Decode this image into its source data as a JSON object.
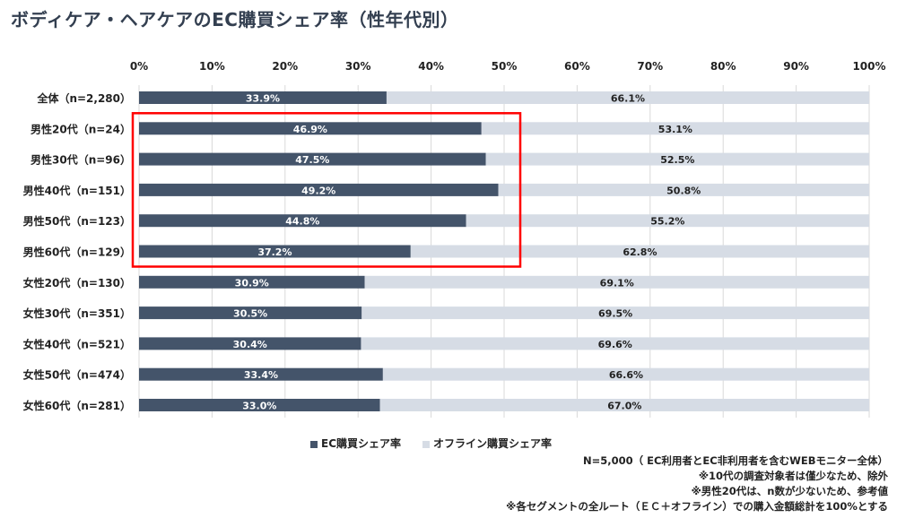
{
  "chart_data": {
    "type": "bar",
    "stacked": true,
    "orientation": "horizontal",
    "title": "ボディケア・ヘアケアのEC購買シェア率（性年代別）",
    "categories": [
      "全体（n=2,280）",
      "男性20代（n=24）",
      "男性30代（n=96）",
      "男性40代（n=151）",
      "男性50代（n=123）",
      "男性60代（n=129）",
      "女性20代（n=130）",
      "女性30代（n=351）",
      "女性40代（n=521）",
      "女性50代（n=474）",
      "女性60代（n=281）"
    ],
    "series": [
      {
        "name": "EC購買シェア率",
        "color": "#44546a",
        "values": [
          33.9,
          46.9,
          47.5,
          49.2,
          44.8,
          37.2,
          30.9,
          30.5,
          30.4,
          33.4,
          33.0
        ]
      },
      {
        "name": "オフライン購買シェア率",
        "color": "#d6dce5",
        "values": [
          66.1,
          53.1,
          52.5,
          50.8,
          55.2,
          62.8,
          69.1,
          69.5,
          69.6,
          66.6,
          67.0
        ]
      }
    ],
    "xlim": [
      0,
      100
    ],
    "xticks": [
      "0%",
      "10%",
      "20%",
      "30%",
      "40%",
      "50%",
      "60%",
      "70%",
      "80%",
      "90%",
      "100%"
    ],
    "legend_position": "bottom",
    "highlight": {
      "categories": [
        "男性20代（n=24）",
        "男性30代（n=96）",
        "男性40代（n=151）",
        "男性50代（n=123）",
        "男性60代（n=129）"
      ],
      "color": "#ff0000"
    }
  },
  "notes": [
    "N=5,000（ EC利用者とEC非利用者を含むWEBモニター全体）",
    "※10代の調査対象者は僅少なため、除外",
    "※男性20代は、n数が少ないため、参考値",
    "※各セグメントの全ルート（ＥＣ＋オフライン）での購入金額総計を100%とする"
  ]
}
